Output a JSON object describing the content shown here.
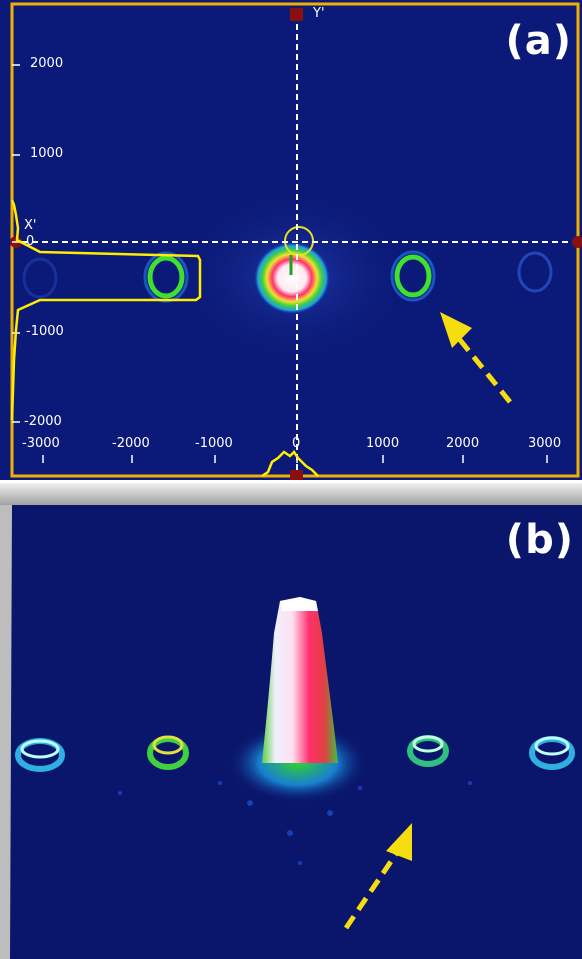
{
  "panel_a": {
    "label": "(a)",
    "axis_y_name": "Y'",
    "axis_x_name": "X'",
    "x_ticks": [
      "-3000",
      "-2000",
      "-1000",
      "0",
      "1000",
      "2000",
      "3000"
    ],
    "y_ticks": [
      "2000",
      "1000",
      "0",
      "-1000",
      "-2000"
    ],
    "colors": {
      "background": "#0b1a78",
      "frame": "#f0b000",
      "crosshair": "#ffffff",
      "arrow": "#f5dd10",
      "profile": "#ffee00"
    }
  },
  "panel_b": {
    "label": "(b)",
    "colors": {
      "background": "#0a166c",
      "arrow": "#f5dd10"
    }
  }
}
